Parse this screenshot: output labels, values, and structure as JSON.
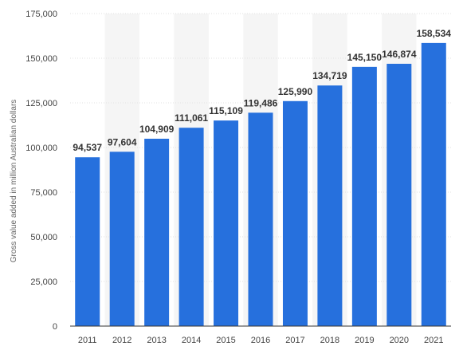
{
  "chart_data": {
    "type": "bar",
    "categories": [
      "2011",
      "2012",
      "2013",
      "2014",
      "2015",
      "2016",
      "2017",
      "2018",
      "2019",
      "2020",
      "2021"
    ],
    "values": [
      94537,
      97604,
      104909,
      111061,
      115109,
      119486,
      125990,
      134719,
      145150,
      146874,
      158534
    ],
    "data_labels": [
      "94,537",
      "97,604",
      "104,909",
      "111,061",
      "115,109",
      "119,486",
      "125,990",
      "134,719",
      "145,150",
      "146,874",
      "158,534"
    ],
    "ylabel": "Gross value added in million Australian dollars",
    "xlabel": "",
    "ylim": [
      0,
      175000
    ],
    "yticks": [
      0,
      25000,
      50000,
      75000,
      100000,
      125000,
      150000,
      175000
    ],
    "ytick_labels": [
      "0",
      "25,000",
      "50,000",
      "75,000",
      "100,000",
      "125,000",
      "150,000",
      "175,000"
    ],
    "grid": true,
    "bar_color": "#2670dd",
    "band_color": "#f5f5f5",
    "grid_color": "#e2e2e2"
  }
}
